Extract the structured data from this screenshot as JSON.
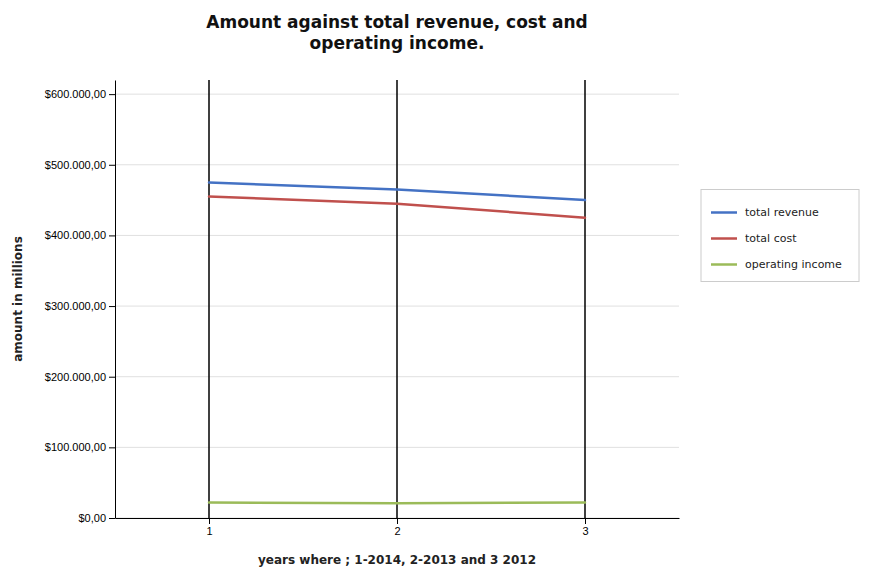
{
  "chart_data": {
    "type": "line",
    "title": "Amount against total revenue, cost and\noperating income.",
    "xlabel": "years where ;  1-2014, 2-2013 and 3 2012",
    "ylabel": "amount in millions",
    "x": [
      1,
      2,
      3
    ],
    "series": [
      {
        "name": "total revenue",
        "color": "#4472C4",
        "values": [
          475000,
          465000,
          450000
        ]
      },
      {
        "name": "total cost",
        "color": "#C0504D",
        "values": [
          455000,
          445000,
          425000
        ]
      },
      {
        "name": "operating income",
        "color": "#9BBB59",
        "values": [
          22000,
          21000,
          22000
        ]
      }
    ],
    "xlim": [
      0.5,
      3.5
    ],
    "xticks": [
      1,
      2,
      3
    ],
    "ylim": [
      0,
      620000
    ],
    "yticks": [
      {
        "value": 0,
        "label": "$0,00"
      },
      {
        "value": 100000,
        "label": "$100.000,00"
      },
      {
        "value": 200000,
        "label": "$200.000,00"
      },
      {
        "value": 300000,
        "label": "$300.000,00"
      },
      {
        "value": 400000,
        "label": "$400.000,00"
      },
      {
        "value": 500000,
        "label": "$500.000,00"
      },
      {
        "value": 600000,
        "label": "$600.000,00"
      }
    ],
    "grid": true,
    "legend": "right"
  }
}
